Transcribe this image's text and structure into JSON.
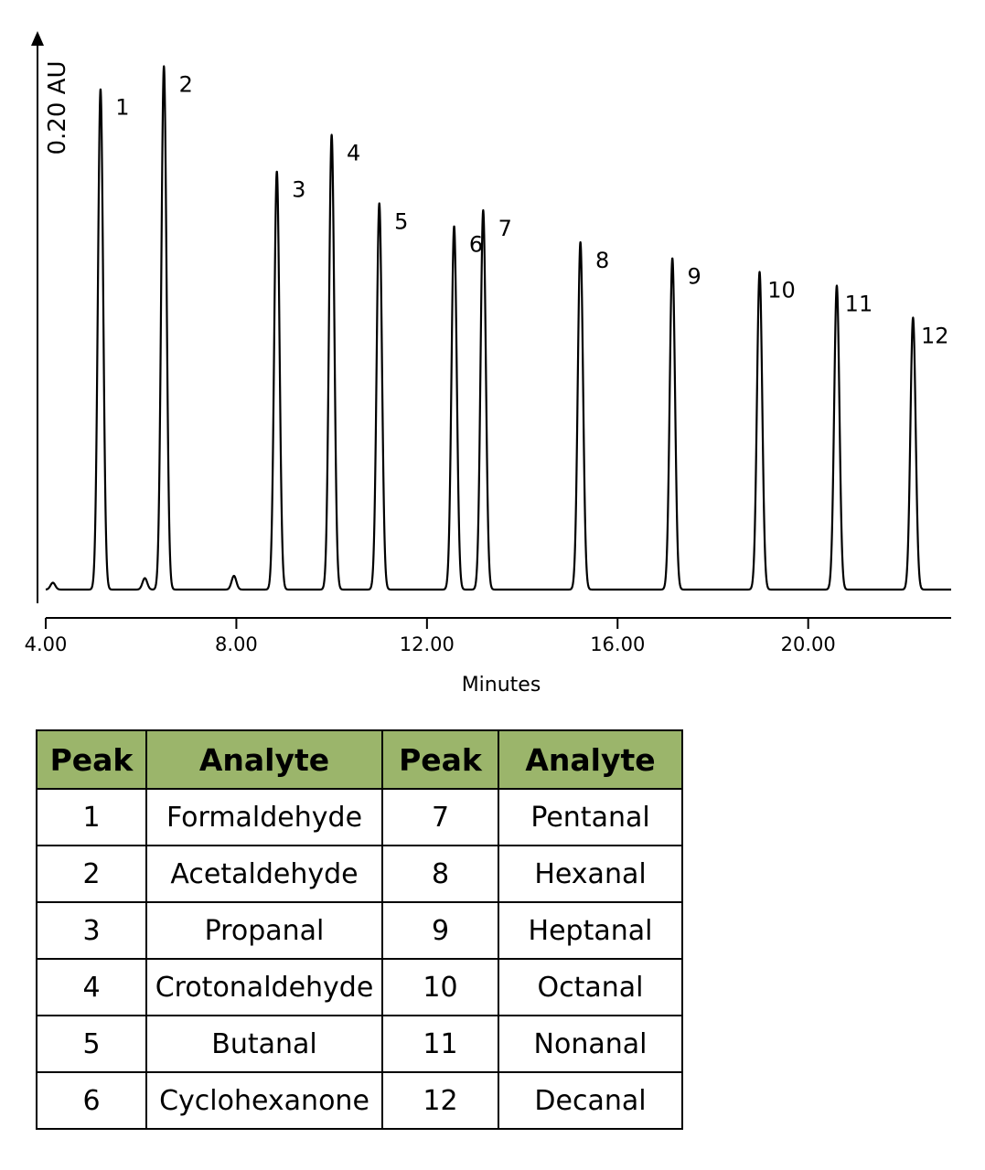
{
  "chart_data": {
    "type": "line",
    "ylabel": "0.20 AU",
    "xlabel": "Minutes",
    "xlim": [
      4.0,
      23.0
    ],
    "xticks": [
      "4.00",
      "8.00",
      "12.00",
      "16.00",
      "20.00"
    ],
    "xtick_values": [
      4.0,
      8.0,
      12.0,
      16.0,
      20.0
    ],
    "grid": false,
    "peaks": [
      {
        "label": "1",
        "rt": 5.15,
        "height": 0.219
      },
      {
        "label": "2",
        "rt": 6.48,
        "height": 0.229
      },
      {
        "label": "3",
        "rt": 8.85,
        "height": 0.183
      },
      {
        "label": "4",
        "rt": 10.0,
        "height": 0.199
      },
      {
        "label": "5",
        "rt": 11.0,
        "height": 0.169
      },
      {
        "label": "6",
        "rt": 12.57,
        "height": 0.159
      },
      {
        "label": "7",
        "rt": 13.18,
        "height": 0.166
      },
      {
        "label": "8",
        "rt": 15.22,
        "height": 0.152
      },
      {
        "label": "9",
        "rt": 17.15,
        "height": 0.145
      },
      {
        "label": "10",
        "rt": 18.98,
        "height": 0.139
      },
      {
        "label": "11",
        "rt": 20.6,
        "height": 0.133
      },
      {
        "label": "12",
        "rt": 22.2,
        "height": 0.119
      }
    ],
    "minor_peaks": [
      {
        "rt": 4.15,
        "height": 0.003
      },
      {
        "rt": 6.08,
        "height": 0.005
      },
      {
        "rt": 7.95,
        "height": 0.006
      }
    ]
  },
  "table": {
    "headers": [
      "Peak",
      "Analyte",
      "Peak",
      "Analyte"
    ],
    "rows": [
      [
        "1",
        "Formaldehyde",
        "7",
        "Pentanal"
      ],
      [
        "2",
        "Acetaldehyde",
        "8",
        "Hexanal"
      ],
      [
        "3",
        "Propanal",
        "9",
        "Heptanal"
      ],
      [
        "4",
        "Crotonaldehyde",
        "10",
        "Octanal"
      ],
      [
        "5",
        "Butanal",
        "11",
        "Nonanal"
      ],
      [
        "6",
        "Cyclohexanone",
        "12",
        "Decanal"
      ]
    ],
    "header_color": "#9bb56b"
  }
}
